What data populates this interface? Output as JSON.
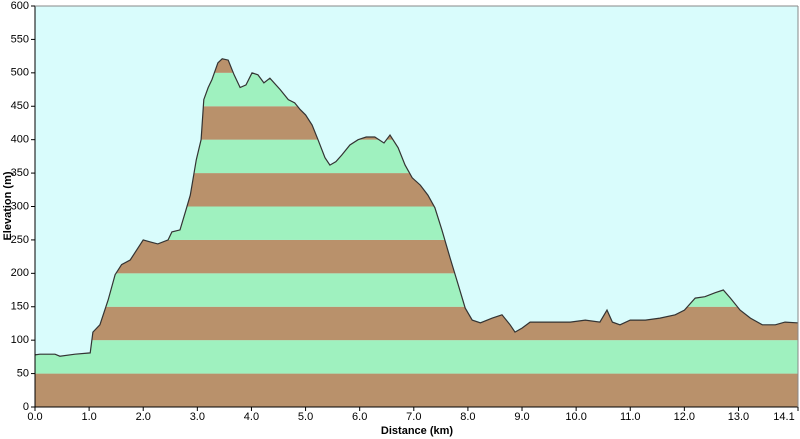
{
  "chart_data": {
    "type": "area",
    "xlabel": "Distance (km)",
    "ylabel": "Elevation (m)",
    "x": [
      0,
      0.09,
      0.37,
      0.46,
      0.74,
      1.02,
      1.07,
      1.2,
      1.35,
      1.48,
      1.6,
      1.76,
      2.0,
      2.13,
      2.27,
      2.46,
      2.53,
      2.68,
      2.79,
      2.87,
      2.98,
      3.07,
      3.12,
      3.2,
      3.27,
      3.38,
      3.46,
      3.57,
      3.68,
      3.79,
      3.9,
      4.01,
      4.12,
      4.23,
      4.34,
      4.53,
      4.68,
      4.8,
      4.9,
      5.0,
      5.12,
      5.23,
      5.36,
      5.45,
      5.56,
      5.67,
      5.82,
      5.97,
      6.12,
      6.28,
      6.45,
      6.56,
      6.71,
      6.84,
      6.97,
      7.12,
      7.26,
      7.39,
      7.52,
      7.67,
      7.82,
      7.95,
      8.08,
      8.23,
      8.45,
      8.63,
      8.78,
      8.87,
      9.0,
      9.15,
      9.52,
      9.89,
      10.17,
      10.44,
      10.57,
      10.67,
      10.81,
      11.0,
      11.28,
      11.55,
      11.83,
      12.0,
      12.2,
      12.38,
      12.57,
      12.72,
      12.85,
      13.03,
      13.22,
      13.44,
      13.68,
      13.86,
      14.08,
      14.1
    ],
    "y": [
      78,
      79,
      79,
      76,
      79,
      81,
      112,
      123,
      160,
      198,
      213,
      220,
      250,
      247,
      244,
      250,
      262,
      265,
      295,
      317,
      370,
      400,
      460,
      478,
      490,
      515,
      521,
      519,
      497,
      478,
      482,
      500,
      497,
      485,
      492,
      475,
      460,
      455,
      445,
      437,
      422,
      400,
      373,
      362,
      367,
      377,
      392,
      400,
      404,
      404,
      395,
      407,
      388,
      362,
      343,
      332,
      317,
      298,
      265,
      223,
      183,
      148,
      130,
      126,
      133,
      138,
      123,
      112,
      118,
      127,
      127,
      127,
      130,
      127,
      145,
      127,
      123,
      130,
      130,
      133,
      138,
      145,
      163,
      165,
      171,
      175,
      163,
      145,
      133,
      123,
      123,
      127,
      126,
      126
    ],
    "xlim": [
      0,
      14.1
    ],
    "xticks": [
      {
        "value": 0,
        "label": "0.0"
      },
      {
        "value": 1,
        "label": "1.0"
      },
      {
        "value": 2,
        "label": "2.0"
      },
      {
        "value": 3,
        "label": "3.0"
      },
      {
        "value": 4,
        "label": "4.0"
      },
      {
        "value": 5,
        "label": "5.0"
      },
      {
        "value": 6,
        "label": "6.0"
      },
      {
        "value": 7,
        "label": "7.0"
      },
      {
        "value": 8,
        "label": "8.0"
      },
      {
        "value": 9,
        "label": "9.0"
      },
      {
        "value": 10,
        "label": "10.0"
      },
      {
        "value": 11,
        "label": "11.0"
      },
      {
        "value": 12,
        "label": "12.0"
      },
      {
        "value": 13,
        "label": "13.0"
      },
      {
        "value": 14.1,
        "label": "14.1"
      }
    ],
    "ylim": [
      0,
      600
    ],
    "yticks": [
      0,
      50,
      100,
      150,
      200,
      250,
      300,
      350,
      400,
      450,
      500,
      550,
      600
    ],
    "band_colors": [
      "#b9916b",
      "#9ff1bf"
    ],
    "background": "#d9fcfc",
    "line_color": "#333333"
  }
}
